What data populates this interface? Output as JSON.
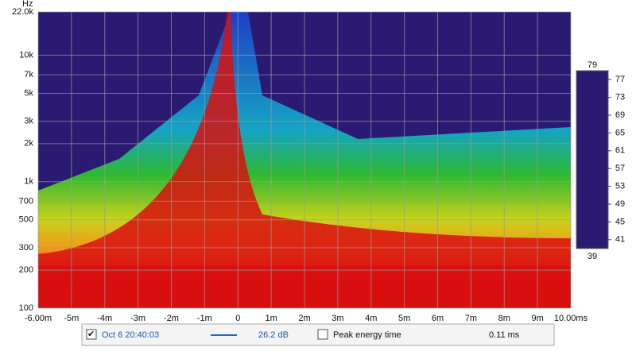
{
  "chart_data": {
    "type": "spectrogram",
    "y_label": "Hz",
    "log_y": true,
    "grid": true,
    "xlim": [
      -6,
      10
    ],
    "xticks": [
      {
        "value": -6,
        "label": "-6.00m"
      },
      {
        "value": -5,
        "label": "-5m"
      },
      {
        "value": -4,
        "label": "-4m"
      },
      {
        "value": -3,
        "label": "-3m"
      },
      {
        "value": -2,
        "label": "-2m"
      },
      {
        "value": -1,
        "label": "-1m"
      },
      0,
      {
        "value": 1,
        "label": "1m"
      },
      {
        "value": 2,
        "label": "2m"
      },
      {
        "value": 3,
        "label": "3m"
      },
      {
        "value": 4,
        "label": "4m"
      },
      {
        "value": 5,
        "label": "5m"
      },
      {
        "value": 6,
        "label": "6m"
      },
      {
        "value": 7,
        "label": "7m"
      },
      {
        "value": 8,
        "label": "8m"
      },
      {
        "value": 9,
        "label": "9m"
      },
      {
        "value": 10,
        "label": "10.00ms"
      }
    ],
    "ylim": [
      100,
      22000
    ],
    "yticks": [
      100,
      200,
      300,
      500,
      700,
      {
        "value": 1000,
        "label": "1k"
      },
      {
        "value": 2000,
        "label": "2k"
      },
      {
        "value": 3000,
        "label": "3k"
      },
      {
        "value": 5000,
        "label": "5k"
      },
      {
        "value": 7000,
        "label": "7k"
      },
      {
        "value": 10000,
        "label": "10k"
      },
      {
        "value": 22000,
        "label": "22.0k"
      }
    ],
    "colorbar_lim": [
      39,
      79
    ],
    "colorbar_ticks": [
      39,
      41,
      45,
      49,
      53,
      57,
      61,
      65,
      69,
      73,
      77,
      79
    ],
    "colormap": [
      "#2b1a72",
      "#1f3fc4",
      "#14a4c4",
      "#2fb832",
      "#c8d21c",
      "#f29a18",
      "#d81010"
    ]
  },
  "legend": {
    "entry": {
      "label": "Oct 6 20:40:03",
      "color": "#1a6cc0",
      "value": "26.2 dB",
      "checked": true
    },
    "peak": {
      "label": "Peak energy time",
      "value": "0.11 ms",
      "checked": false
    }
  }
}
